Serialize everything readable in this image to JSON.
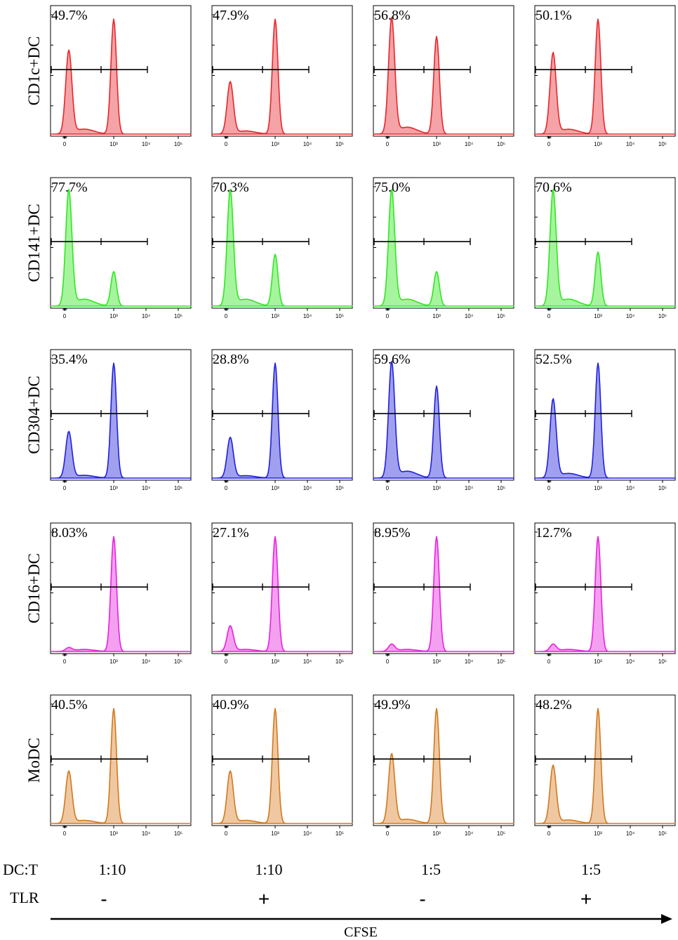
{
  "chart_data": {
    "type": "histogram-grid",
    "x_axis_label": "CFSE",
    "x_ticks": [
      "0",
      "10³",
      "10⁴",
      "10⁵"
    ],
    "rows": [
      {
        "label": "CD1c+DC",
        "color": "#e8262b",
        "fill": "#f4a3a6",
        "percents": [
          "49.7%",
          "47.9%",
          "56.8%",
          "50.1%"
        ],
        "peaks": [
          [
            0.72,
            1.0
          ],
          [
            0.45,
            1.0
          ],
          [
            1.0,
            0.85
          ],
          [
            0.7,
            1.0
          ]
        ]
      },
      {
        "label": "CD141+DC",
        "color": "#2ee820",
        "fill": "#a6f49e",
        "percents": [
          "77.7%",
          "70.3%",
          "75.0%",
          "70.6%"
        ],
        "peaks": [
          [
            1.0,
            0.3
          ],
          [
            1.0,
            0.45
          ],
          [
            1.0,
            0.3
          ],
          [
            1.0,
            0.47
          ]
        ]
      },
      {
        "label": "CD304+DC",
        "color": "#2020e0",
        "fill": "#a0a0ee",
        "percents": [
          "35.4%",
          "28.8%",
          "59.6%",
          "52.5%"
        ],
        "peaks": [
          [
            0.4,
            1.0
          ],
          [
            0.35,
            1.0
          ],
          [
            1.0,
            0.8
          ],
          [
            0.68,
            1.0
          ]
        ]
      },
      {
        "label": "CD16+DC",
        "color": "#e820e0",
        "fill": "#f4a0f0",
        "percents": [
          "8.03%",
          "27.1%",
          "8.95%",
          "12.7%"
        ],
        "peaks": [
          [
            0.03,
            1.0
          ],
          [
            0.22,
            1.0
          ],
          [
            0.06,
            1.0
          ],
          [
            0.06,
            1.0
          ]
        ]
      },
      {
        "label": "MoDC",
        "color": "#d2781c",
        "fill": "#efc8a2",
        "percents": [
          "40.5%",
          "40.9%",
          "49.9%",
          "48.2%"
        ],
        "peaks": [
          [
            0.45,
            1.0
          ],
          [
            0.45,
            1.0
          ],
          [
            0.6,
            1.0
          ],
          [
            0.5,
            1.0
          ]
        ]
      }
    ],
    "columns": [
      {
        "dc_t": "1:10",
        "tlr": "-"
      },
      {
        "dc_t": "1:10",
        "tlr": "+"
      },
      {
        "dc_t": "1:5",
        "tlr": "-"
      },
      {
        "dc_t": "1:5",
        "tlr": "+"
      }
    ],
    "bottom_labels": {
      "dc_t": "DC:T",
      "tlr": "TLR"
    }
  }
}
